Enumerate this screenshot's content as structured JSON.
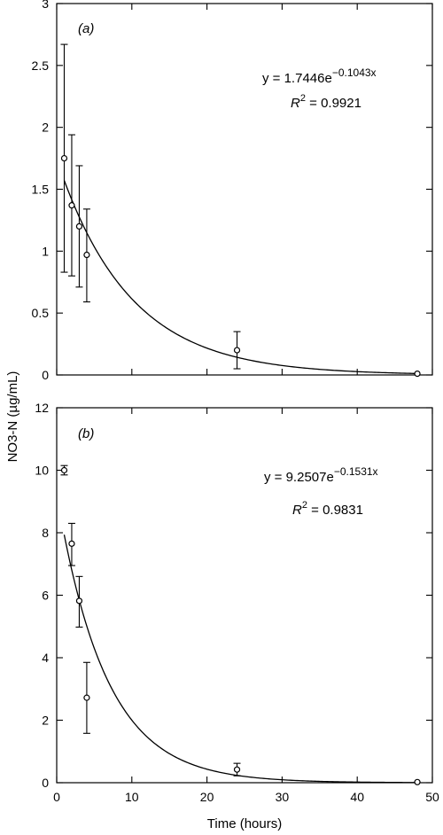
{
  "figure": {
    "ylabel": "NO3-N (µg/mL)",
    "xlabel": "Time (hours)"
  },
  "chart_data": [
    {
      "type": "scatter",
      "panel_label": "(a)",
      "title": "",
      "xlabel": "Time (hours)",
      "ylabel": "NO3-N (µg/mL)",
      "xlim": [
        0,
        50
      ],
      "ylim": [
        0,
        3
      ],
      "x_ticks": [
        0,
        10,
        20,
        30,
        40,
        50
      ],
      "y_ticks": [
        0,
        0.5,
        1,
        1.5,
        2,
        2.5,
        3
      ],
      "y_tick_labels": [
        "0",
        "0.5",
        "1",
        "1.5",
        "2",
        "2.5",
        "3"
      ],
      "grid": false,
      "points": [
        {
          "x": 1,
          "y": 1.75,
          "err_low": 0.83,
          "err_high": 2.67
        },
        {
          "x": 2,
          "y": 1.37,
          "err_low": 0.8,
          "err_high": 1.94
        },
        {
          "x": 3,
          "y": 1.2,
          "err_low": 0.71,
          "err_high": 1.69
        },
        {
          "x": 4,
          "y": 0.97,
          "err_low": 0.59,
          "err_high": 1.34
        },
        {
          "x": 24,
          "y": 0.2,
          "err_low": 0.05,
          "err_high": 0.35
        },
        {
          "x": 48,
          "y": 0.01,
          "err_low": 0.01,
          "err_high": 0.01
        }
      ],
      "fit": {
        "a": 1.7446,
        "b": 0.1043,
        "x_start": 1,
        "x_end": 48
      },
      "equation": {
        "prefix": "y = 1.7446e",
        "exponent": "−0.1043x",
        "r2_label": "R",
        "r2_sup": "2",
        "r2_value": " = 0.9921"
      }
    },
    {
      "type": "scatter",
      "panel_label": "(b)",
      "title": "",
      "xlabel": "Time (hours)",
      "ylabel": "NO3-N (µg/mL)",
      "xlim": [
        0,
        50
      ],
      "ylim": [
        0,
        12
      ],
      "x_ticks": [
        0,
        10,
        20,
        30,
        40,
        50
      ],
      "y_ticks": [
        0,
        2,
        4,
        6,
        8,
        10,
        12
      ],
      "y_tick_labels": [
        "0",
        "2",
        "4",
        "6",
        "8",
        "10",
        "12"
      ],
      "grid": false,
      "points": [
        {
          "x": 1,
          "y": 10.0,
          "err_low": 9.85,
          "err_high": 10.15
        },
        {
          "x": 2,
          "y": 7.65,
          "err_low": 6.95,
          "err_high": 8.3
        },
        {
          "x": 3,
          "y": 5.82,
          "err_low": 4.98,
          "err_high": 6.6
        },
        {
          "x": 4,
          "y": 2.72,
          "err_low": 1.58,
          "err_high": 3.85
        },
        {
          "x": 24,
          "y": 0.42,
          "err_low": 0.22,
          "err_high": 0.62
        },
        {
          "x": 48,
          "y": 0.02,
          "err_low": 0.02,
          "err_high": 0.02
        }
      ],
      "fit": {
        "a": 9.2507,
        "b": 0.1531,
        "x_start": 1,
        "x_end": 48
      },
      "equation": {
        "prefix": "y = 9.2507e",
        "exponent": "−0.1531x",
        "r2_label": "R",
        "r2_sup": "2",
        "r2_value": " = 0.9831"
      }
    }
  ]
}
